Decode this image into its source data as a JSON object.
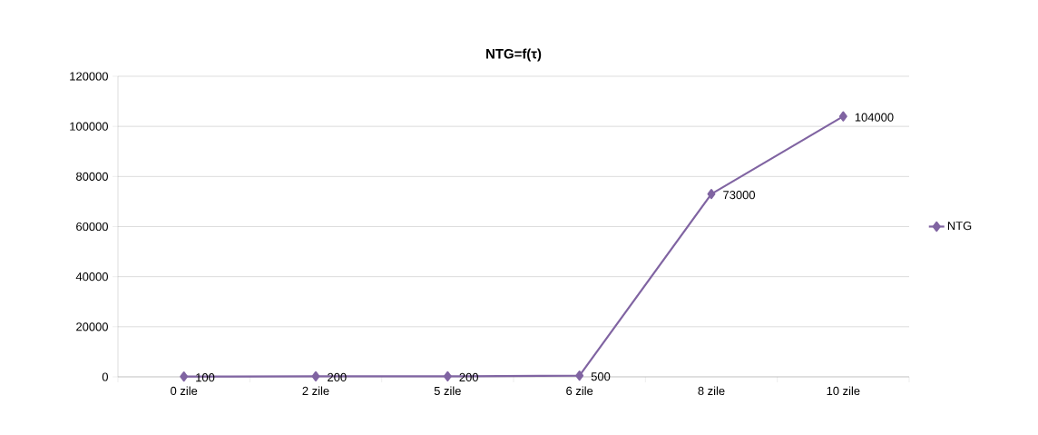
{
  "chart_data": {
    "type": "line",
    "title": "NTG=f(τ)",
    "categories": [
      "0 zile",
      "2 zile",
      "5 zile",
      "6 zile",
      "8 zile",
      "10 zile"
    ],
    "series": [
      {
        "name": "NTG",
        "color": "#8064a2",
        "values": [
          100,
          200,
          200,
          500,
          73000,
          104000
        ]
      }
    ],
    "ylim": [
      0,
      120000
    ],
    "yticks": [
      0,
      20000,
      40000,
      60000,
      80000,
      100000,
      120000
    ],
    "grid": "y",
    "legend": "right",
    "marker": "diamond",
    "data_labels": true
  }
}
